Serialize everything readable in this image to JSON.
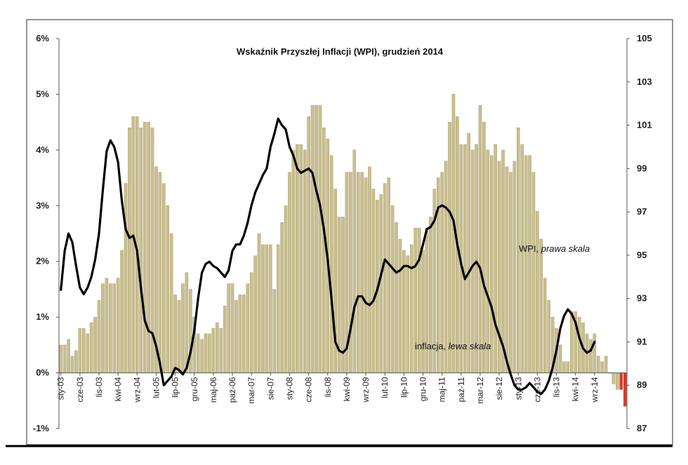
{
  "chart_data": {
    "type": "bar+line",
    "title": "Wskaźnik Przyszłej Inflacji (WPI), grudzień 2014",
    "left_axis": {
      "ylim": [
        -1,
        6
      ],
      "ticks": [
        "-1%",
        "0%",
        "1%",
        "2%",
        "3%",
        "4%",
        "5%",
        "6%"
      ]
    },
    "right_axis": {
      "ylim": [
        87,
        105
      ],
      "ticks": [
        "87",
        "89",
        "91",
        "93",
        "95",
        "97",
        "99",
        "101",
        "103",
        "105"
      ]
    },
    "x_tick_labels": [
      "sty-03",
      "cze-03",
      "lis-03",
      "kwi-04",
      "wrz-04",
      "lut-05",
      "lip-05",
      "gru-05",
      "maj-06",
      "paź-06",
      "mar-07",
      "sie-07",
      "sty-08",
      "cze-08",
      "lis-08",
      "kwi-09",
      "wrz-09",
      "lut-10",
      "lip-10",
      "gru-10",
      "maj-11",
      "paź-11",
      "mar-12",
      "sie-12",
      "sty-13",
      "cze-13",
      "lis-13",
      "kwi-14",
      "wrz-14"
    ],
    "x_tick_every": 5,
    "grid": false,
    "colors": {
      "bars": "#c9bf8e",
      "bars_stroke": "#9e946a",
      "bars_negative": "#d93b2b",
      "line": "#000000"
    },
    "annotations": {
      "wpi": {
        "name": "WPI, ",
        "scale": "prawa skala"
      },
      "inflation": {
        "name": "inflacja, ",
        "scale": "lewa skala"
      }
    },
    "series": [
      {
        "kind": "bar",
        "axis": "left",
        "values": [
          0.5,
          0.5,
          0.6,
          0.3,
          0.4,
          0.8,
          0.8,
          0.7,
          0.9,
          1.0,
          1.3,
          1.6,
          1.7,
          1.6,
          1.6,
          1.7,
          2.2,
          3.4,
          4.4,
          4.6,
          4.6,
          4.4,
          4.5,
          4.5,
          4.4,
          3.7,
          3.6,
          3.4,
          3.0,
          2.5,
          1.4,
          1.3,
          1.6,
          1.8,
          1.5,
          1.0,
          0.7,
          0.6,
          0.7,
          0.7,
          0.8,
          0.9,
          0.8,
          1.2,
          1.6,
          1.6,
          1.3,
          1.4,
          1.4,
          1.6,
          1.8,
          2.1,
          2.5,
          2.3,
          2.3,
          2.3,
          1.5,
          2.3,
          2.7,
          3.0,
          3.6,
          4.0,
          4.1,
          4.1,
          4.0,
          4.6,
          4.8,
          4.8,
          4.8,
          4.4,
          4.2,
          3.9,
          3.3,
          2.8,
          2.8,
          3.6,
          3.6,
          4.0,
          3.6,
          3.6,
          3.5,
          3.7,
          3.3,
          3.1,
          3.2,
          3.4,
          3.5,
          3.0,
          2.7,
          2.4,
          2.2,
          2.1,
          2.3,
          2.6,
          2.6,
          2.2,
          2.6,
          2.8,
          3.3,
          3.5,
          3.6,
          3.8,
          4.5,
          5.0,
          4.6,
          4.1,
          4.1,
          4.3,
          4.0,
          4.1,
          4.8,
          4.5,
          4.0,
          3.9,
          4.1,
          3.8,
          4.0,
          3.7,
          3.6,
          3.8,
          4.4,
          4.1,
          3.9,
          3.9,
          3.6,
          2.9,
          2.4,
          1.7,
          1.3,
          1.0,
          0.8,
          0.5,
          0.2,
          0.2,
          1.1,
          1.1,
          1.0,
          0.9,
          0.7,
          0.6,
          0.7,
          0.3,
          0.2,
          0.3,
          0.0,
          -0.2,
          -0.3,
          -0.3,
          -0.6
        ],
        "highlight_last": 2
      },
      {
        "name": "WPI",
        "kind": "line",
        "axis": "right",
        "values": [
          93.4,
          95.2,
          96.0,
          95.6,
          94.5,
          93.5,
          93.2,
          93.5,
          94.0,
          94.8,
          96.0,
          98.0,
          99.8,
          100.3,
          100.0,
          99.3,
          97.5,
          96.2,
          95.8,
          95.9,
          95.2,
          93.5,
          92.0,
          91.5,
          91.4,
          90.8,
          90.0,
          89.0,
          89.2,
          89.4,
          89.8,
          89.7,
          89.5,
          89.8,
          90.5,
          91.5,
          93.0,
          94.2,
          94.6,
          94.7,
          94.5,
          94.4,
          94.2,
          94.0,
          94.3,
          95.2,
          95.5,
          95.5,
          95.9,
          96.5,
          97.3,
          97.9,
          98.3,
          98.7,
          99.0,
          100.0,
          100.6,
          101.3,
          101.0,
          100.8,
          100.0,
          99.6,
          99.0,
          98.8,
          98.9,
          99.0,
          98.8,
          98.0,
          97.3,
          96.2,
          94.8,
          93.0,
          91.0,
          90.6,
          90.5,
          90.7,
          91.6,
          92.6,
          93.1,
          93.1,
          92.8,
          92.7,
          92.9,
          93.4,
          94.1,
          94.8,
          94.6,
          94.4,
          94.2,
          94.3,
          94.5,
          94.5,
          94.4,
          94.5,
          94.8,
          95.5,
          96.2,
          96.3,
          96.6,
          97.2,
          97.3,
          97.2,
          97.0,
          96.6,
          95.5,
          94.6,
          93.9,
          94.2,
          94.5,
          94.7,
          94.4,
          93.6,
          93.1,
          92.6,
          91.8,
          91.3,
          90.8,
          90.1,
          89.5,
          89.0,
          88.8,
          88.8,
          88.9,
          89.1,
          88.9,
          88.7,
          88.6,
          88.8,
          89.2,
          89.8,
          90.6,
          91.6,
          92.2,
          92.5,
          92.3,
          91.9,
          91.2,
          90.7,
          90.5,
          90.6,
          91.0
        ]
      }
    ]
  }
}
